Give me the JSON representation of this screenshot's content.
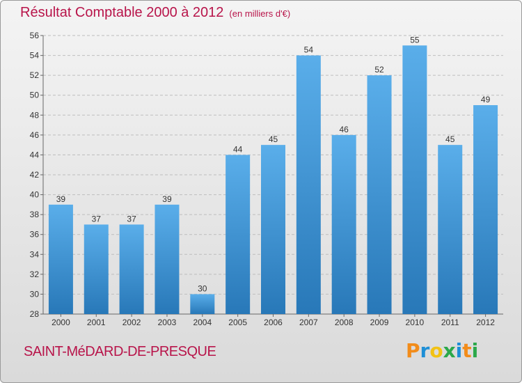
{
  "title": "Résultat Comptable 2000 à 2012",
  "subtitle": "(en milliers d'€)",
  "commune": "SAINT-MéDARD-DE-PRESQUE",
  "logo": {
    "text": "Proxiti",
    "letters": [
      {
        "ch": "P",
        "color": "#f28c1a"
      },
      {
        "ch": "r",
        "color": "#1e8fd6"
      },
      {
        "ch": "o",
        "color": "#f2c214"
      },
      {
        "ch": "x",
        "color": "#2ba84a"
      },
      {
        "ch": "i",
        "color": "#1e8fd6"
      },
      {
        "ch": "t",
        "color": "#f28c1a"
      },
      {
        "ch": "i",
        "color": "#2ba84a"
      }
    ]
  },
  "colors": {
    "accent": "#b8144a",
    "bar_top": "#5aaeea",
    "bar_bottom": "#2878b8"
  },
  "chart_data": {
    "type": "bar",
    "categories": [
      "2000",
      "2001",
      "2002",
      "2003",
      "2004",
      "2005",
      "2006",
      "2007",
      "2008",
      "2009",
      "2010",
      "2011",
      "2012"
    ],
    "values": [
      39,
      37,
      37,
      39,
      30,
      44,
      45,
      54,
      46,
      52,
      55,
      45,
      49
    ],
    "ylim": [
      28,
      56
    ],
    "yticks": [
      28,
      30,
      32,
      34,
      36,
      38,
      40,
      42,
      44,
      46,
      48,
      50,
      52,
      54,
      56
    ],
    "grid": true,
    "data_labels": true
  }
}
